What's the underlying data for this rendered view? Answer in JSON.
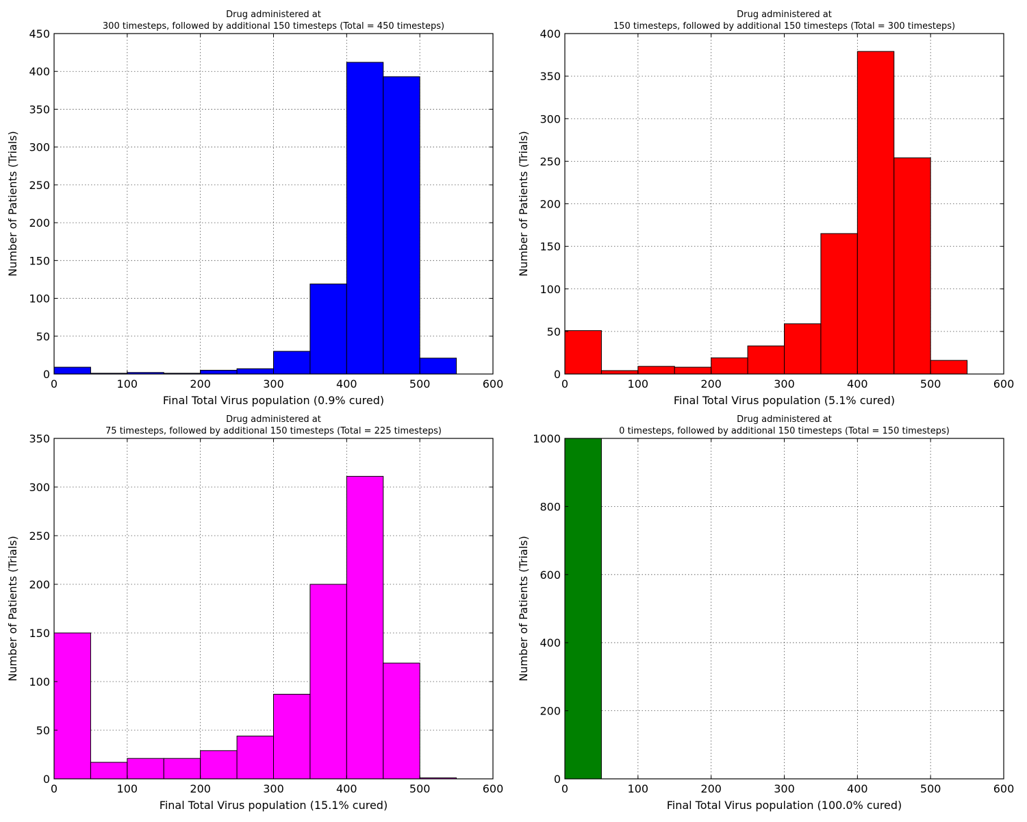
{
  "chart_data": [
    {
      "type": "bar",
      "title_line1": "Drug administered at",
      "title_line2": "300 timesteps, followed by additional 150 timesteps (Total = 450 timesteps)",
      "xlabel": "Final Total Virus population (0.9% cured)",
      "ylabel": "Number of Patients (Trials)",
      "color": "#0000ff",
      "bin_edges": [
        0,
        50,
        100,
        150,
        200,
        250,
        300,
        350,
        400,
        450,
        500,
        550
      ],
      "values": [
        9,
        1,
        2,
        1,
        5,
        7,
        30,
        119,
        412,
        393,
        21
      ],
      "xlim": [
        0,
        600
      ],
      "ylim": [
        0,
        450
      ],
      "xticks": [
        0,
        100,
        200,
        300,
        400,
        500,
        600
      ],
      "yticks": [
        0,
        50,
        100,
        150,
        200,
        250,
        300,
        350,
        400,
        450
      ],
      "grid": true
    },
    {
      "type": "bar",
      "title_line1": "Drug administered at",
      "title_line2": "150 timesteps, followed by additional 150 timesteps (Total = 300 timesteps)",
      "xlabel": "Final Total Virus population (5.1% cured)",
      "ylabel": "Number of Patients (Trials)",
      "color": "#ff0000",
      "bin_edges": [
        0,
        50,
        100,
        150,
        200,
        250,
        300,
        350,
        400,
        450,
        500,
        550
      ],
      "values": [
        51,
        4,
        9,
        8,
        19,
        33,
        59,
        165,
        379,
        254,
        16
      ],
      "xlim": [
        0,
        600
      ],
      "ylim": [
        0,
        400
      ],
      "xticks": [
        0,
        100,
        200,
        300,
        400,
        500,
        600
      ],
      "yticks": [
        0,
        50,
        100,
        150,
        200,
        250,
        300,
        350,
        400
      ],
      "grid": true
    },
    {
      "type": "bar",
      "title_line1": "Drug administered at",
      "title_line2": "75 timesteps, followed by additional 150 timesteps (Total = 225 timesteps)",
      "xlabel": "Final Total Virus population (15.1% cured)",
      "ylabel": "Number of Patients (Trials)",
      "color": "#ff00ff",
      "bin_edges": [
        0,
        50,
        100,
        150,
        200,
        250,
        300,
        350,
        400,
        450,
        500,
        550
      ],
      "values": [
        150,
        17,
        21,
        21,
        29,
        44,
        87,
        200,
        311,
        119,
        1
      ],
      "xlim": [
        0,
        600
      ],
      "ylim": [
        0,
        350
      ],
      "xticks": [
        0,
        100,
        200,
        300,
        400,
        500,
        600
      ],
      "yticks": [
        0,
        50,
        100,
        150,
        200,
        250,
        300,
        350
      ],
      "grid": true
    },
    {
      "type": "bar",
      "title_line1": "Drug administered at",
      "title_line2": "0 timesteps, followed by additional 150 timesteps (Total = 150 timesteps)",
      "xlabel": "Final Total Virus population (100.0% cured)",
      "ylabel": "Number of Patients (Trials)",
      "color": "#008000",
      "bin_edges": [
        0,
        50
      ],
      "values": [
        1000
      ],
      "xlim": [
        0,
        600
      ],
      "ylim": [
        0,
        1000
      ],
      "xticks": [
        0,
        100,
        200,
        300,
        400,
        500,
        600
      ],
      "yticks": [
        0,
        200,
        400,
        600,
        800,
        1000
      ],
      "grid": true
    }
  ]
}
